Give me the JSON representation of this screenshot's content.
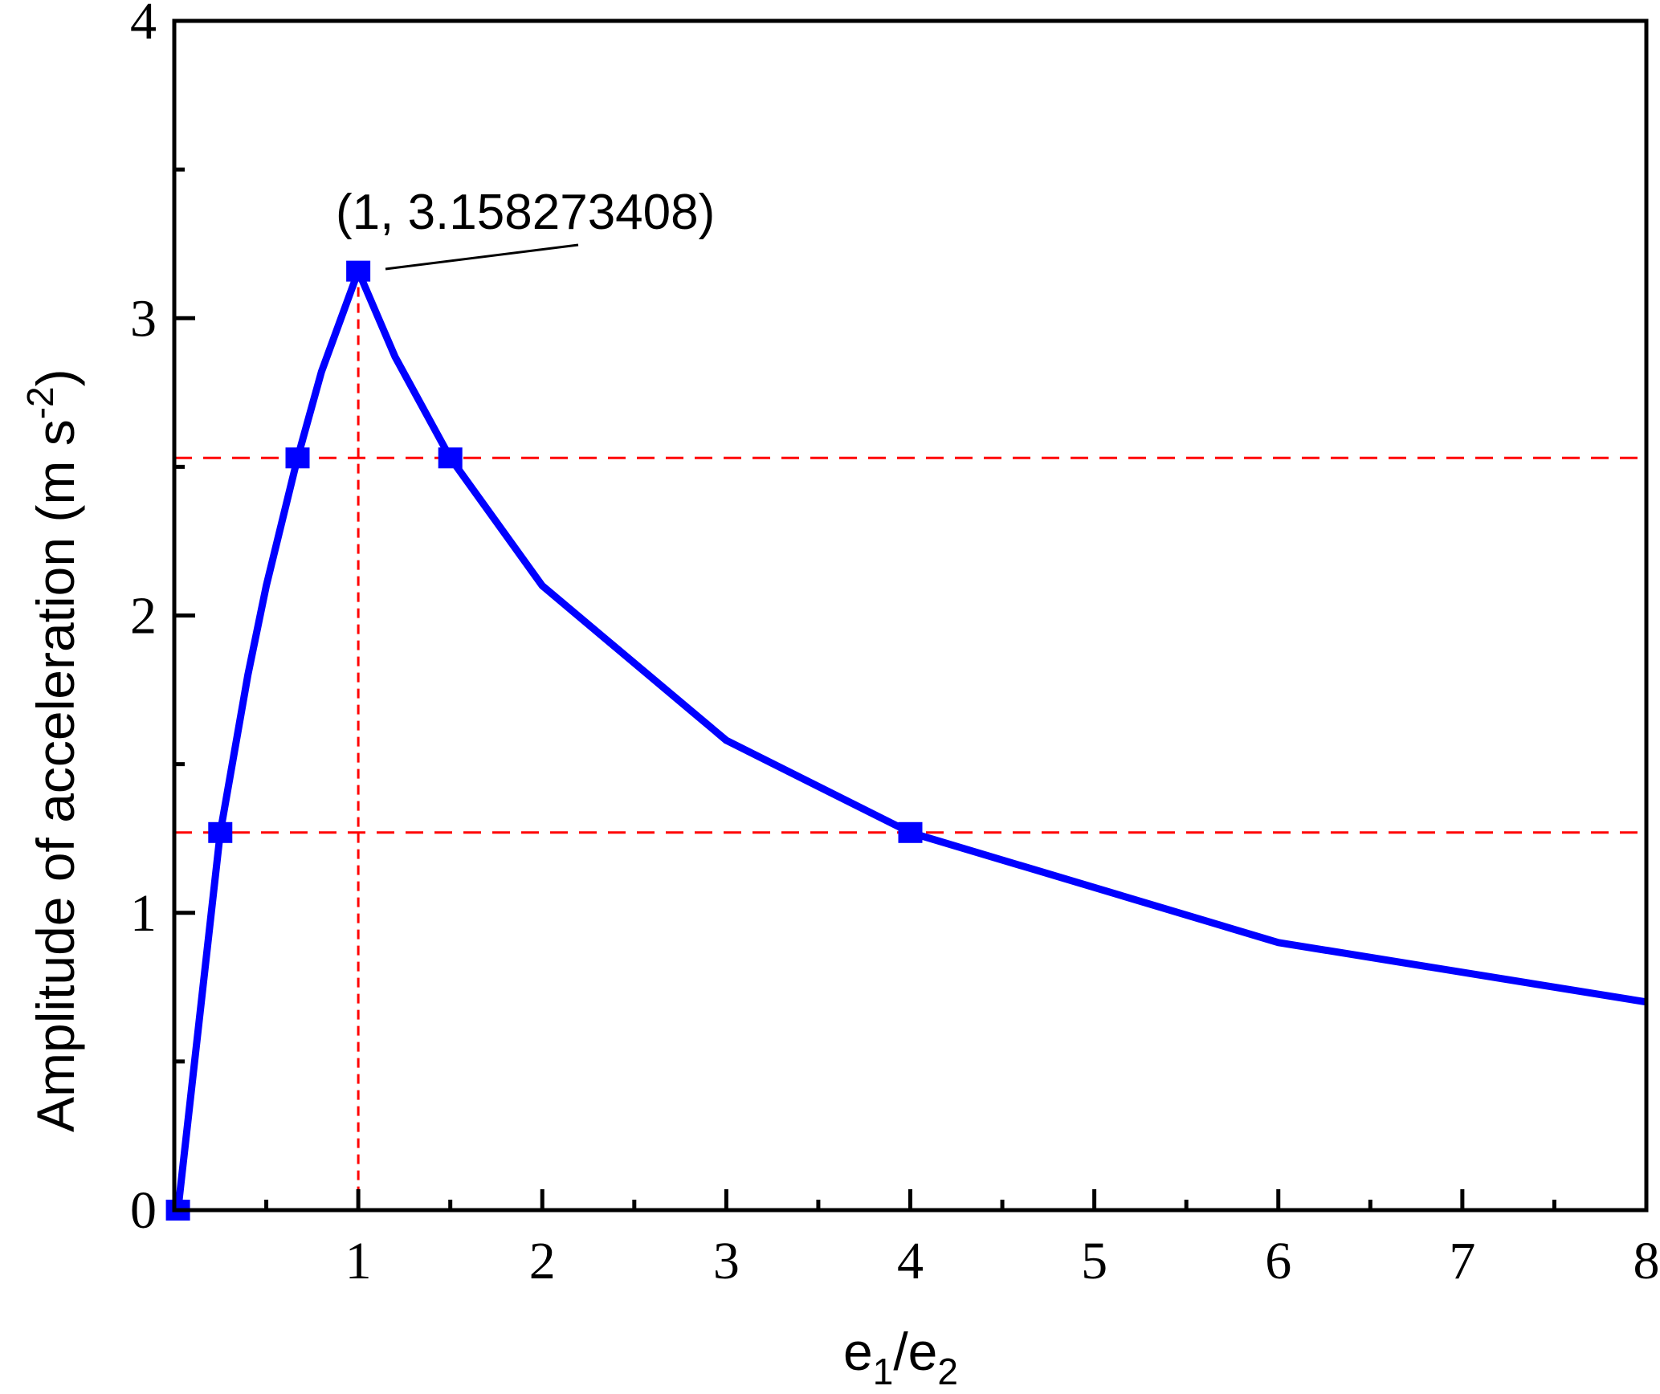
{
  "chart_data": {
    "type": "line",
    "xlabel_main": "e",
    "xlabel_sub1": "1",
    "xlabel_slash": "/e",
    "xlabel_sub2": "2",
    "ylabel_main": "Amplitude of acceleration (m s",
    "ylabel_sup": "-2",
    "ylabel_close": ")",
    "xlim": [
      0,
      8
    ],
    "ylim": [
      0,
      4
    ],
    "xticks": [
      "1",
      "2",
      "3",
      "4",
      "5",
      "6",
      "7",
      "8"
    ],
    "yticks": [
      "0",
      "1",
      "2",
      "3",
      "4"
    ],
    "series": [
      {
        "name": "amplitude",
        "color": "#0000ff",
        "x": [
          0.02,
          0.25,
          0.4,
          0.5,
          0.67,
          0.8,
          1,
          1.2,
          1.5,
          2,
          3,
          4,
          6,
          8
        ],
        "y": [
          0,
          1.27,
          1.8,
          2.1,
          2.53,
          2.82,
          3.158273408,
          2.87,
          2.53,
          2.1,
          1.58,
          1.27,
          0.9,
          0.7
        ],
        "markers_x": [
          0.02,
          0.25,
          0.67,
          1,
          1.5,
          4
        ]
      }
    ],
    "reference_lines": {
      "color": "#ff0000",
      "horizontal": [
        2.53,
        1.27
      ],
      "vertical": [
        1
      ]
    },
    "annotation": {
      "text": "(1, 3.158273408)",
      "x": 1,
      "y": 3.158273408
    },
    "grid": false
  }
}
